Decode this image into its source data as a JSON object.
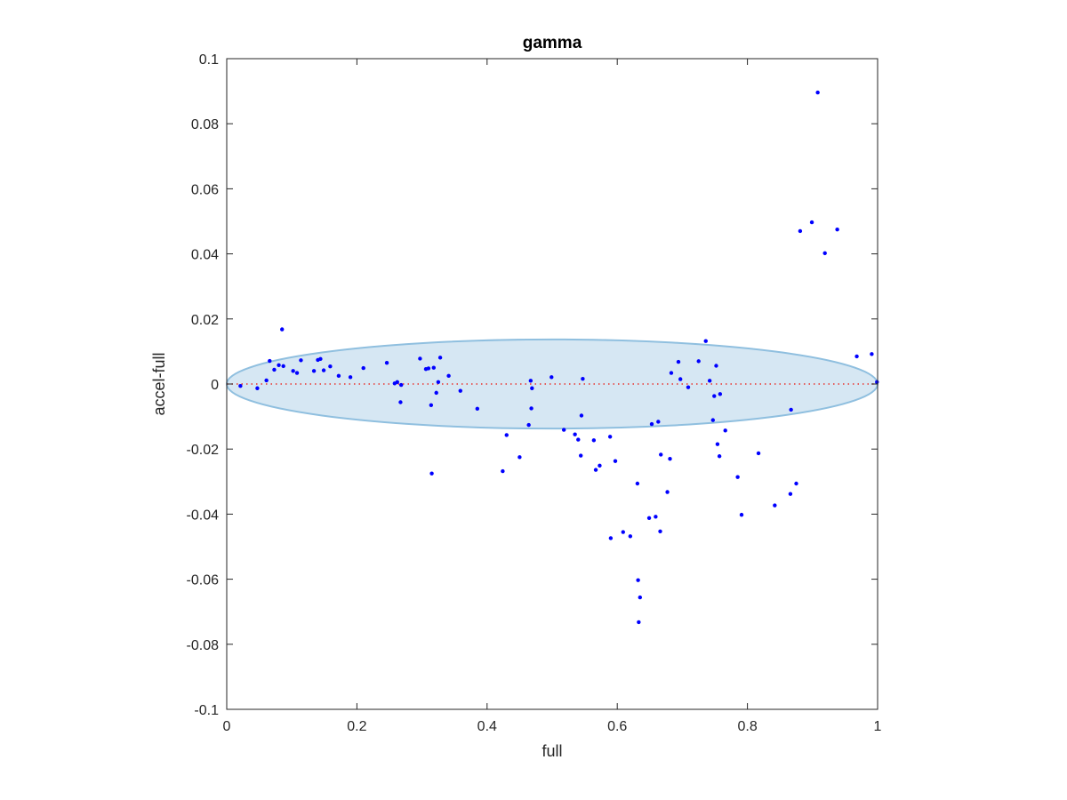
{
  "chart_data": {
    "type": "scatter",
    "title": "gamma",
    "xlabel": "full",
    "ylabel": "accel-full",
    "xlim": [
      0,
      1
    ],
    "ylim": [
      -0.1,
      0.1
    ],
    "xticks": [
      0,
      0.2,
      0.4,
      0.6,
      0.8,
      1
    ],
    "xtick_labels": [
      "0",
      "0.2",
      "0.4",
      "0.6",
      "0.8",
      "1"
    ],
    "yticks": [
      -0.1,
      -0.08,
      -0.06,
      -0.04,
      -0.02,
      0,
      0.02,
      0.04,
      0.06,
      0.08,
      0.1
    ],
    "ytick_labels": [
      "-0.1",
      "-0.08",
      "-0.06",
      "-0.04",
      "-0.02",
      "0",
      "0.02",
      "0.04",
      "0.06",
      "0.08",
      "0.1"
    ],
    "grid": false,
    "ellipse": {
      "center": [
        0.5,
        0
      ],
      "semi_x": 0.5,
      "semi_y": 0.0137,
      "fill": "#d6e7f3",
      "stroke": "#8fbfdf"
    },
    "zero_line": {
      "y": 0,
      "color": "#e8302a",
      "style": "dotted"
    },
    "marker_color": "#0000ff",
    "points": [
      [
        0.021,
        -0.0006
      ],
      [
        0.047,
        -0.0013
      ],
      [
        0.061,
        0.0011
      ],
      [
        0.066,
        0.0071
      ],
      [
        0.073,
        0.0044
      ],
      [
        0.08,
        0.0058
      ],
      [
        0.085,
        0.0168
      ],
      [
        0.087,
        0.0055
      ],
      [
        0.102,
        0.004
      ],
      [
        0.108,
        0.0034
      ],
      [
        0.114,
        0.0073
      ],
      [
        0.134,
        0.004
      ],
      [
        0.14,
        0.0074
      ],
      [
        0.144,
        0.0077
      ],
      [
        0.149,
        0.0042
      ],
      [
        0.159,
        0.0054
      ],
      [
        0.172,
        0.0025
      ],
      [
        0.19,
        0.0021
      ],
      [
        0.21,
        0.0049
      ],
      [
        0.246,
        0.0065
      ],
      [
        0.258,
        0.0002
      ],
      [
        0.262,
        0.0006
      ],
      [
        0.267,
        -0.0056
      ],
      [
        0.268,
        -0.0003
      ],
      [
        0.297,
        0.0078
      ],
      [
        0.306,
        0.0046
      ],
      [
        0.31,
        0.0048
      ],
      [
        0.314,
        -0.0065
      ],
      [
        0.315,
        -0.0275
      ],
      [
        0.318,
        0.005
      ],
      [
        0.322,
        -0.0027
      ],
      [
        0.325,
        0.0006
      ],
      [
        0.328,
        0.0081
      ],
      [
        0.341,
        0.0025
      ],
      [
        0.359,
        -0.0021
      ],
      [
        0.385,
        -0.0076
      ],
      [
        0.424,
        -0.0268
      ],
      [
        0.43,
        -0.0157
      ],
      [
        0.45,
        -0.0225
      ],
      [
        0.464,
        -0.0126
      ],
      [
        0.467,
        0.001
      ],
      [
        0.468,
        -0.0075
      ],
      [
        0.469,
        -0.0013
      ],
      [
        0.499,
        0.0021
      ],
      [
        0.518,
        -0.0141
      ],
      [
        0.535,
        -0.0155
      ],
      [
        0.54,
        -0.0171
      ],
      [
        0.544,
        -0.022
      ],
      [
        0.545,
        -0.0097
      ],
      [
        0.547,
        0.0016
      ],
      [
        0.564,
        -0.0173
      ],
      [
        0.567,
        -0.0264
      ],
      [
        0.573,
        -0.0251
      ],
      [
        0.589,
        -0.0162
      ],
      [
        0.59,
        -0.0474
      ],
      [
        0.597,
        -0.0237
      ],
      [
        0.609,
        -0.0455
      ],
      [
        0.62,
        -0.0468
      ],
      [
        0.631,
        -0.0306
      ],
      [
        0.632,
        -0.0603
      ],
      [
        0.633,
        -0.0732
      ],
      [
        0.635,
        -0.0656
      ],
      [
        0.649,
        -0.0412
      ],
      [
        0.653,
        -0.0123
      ],
      [
        0.659,
        -0.0408
      ],
      [
        0.663,
        -0.0116
      ],
      [
        0.666,
        -0.0453
      ],
      [
        0.667,
        -0.0217
      ],
      [
        0.677,
        -0.0332
      ],
      [
        0.681,
        -0.023
      ],
      [
        0.683,
        0.0034
      ],
      [
        0.694,
        0.0068
      ],
      [
        0.697,
        0.0015
      ],
      [
        0.709,
        -0.001
      ],
      [
        0.725,
        0.007
      ],
      [
        0.736,
        0.0132
      ],
      [
        0.742,
        0.001
      ],
      [
        0.747,
        -0.0111
      ],
      [
        0.749,
        -0.0037
      ],
      [
        0.752,
        0.0056
      ],
      [
        0.754,
        -0.0185
      ],
      [
        0.757,
        -0.0222
      ],
      [
        0.758,
        -0.0031
      ],
      [
        0.766,
        -0.0143
      ],
      [
        0.785,
        -0.0286
      ],
      [
        0.791,
        -0.0402
      ],
      [
        0.817,
        -0.0213
      ],
      [
        0.842,
        -0.0373
      ],
      [
        0.866,
        -0.0338
      ],
      [
        0.867,
        -0.0079
      ],
      [
        0.875,
        -0.0306
      ],
      [
        0.881,
        0.047
      ],
      [
        0.899,
        0.0497
      ],
      [
        0.908,
        0.0896
      ],
      [
        0.919,
        0.0402
      ],
      [
        0.938,
        0.0475
      ],
      [
        0.968,
        0.0085
      ],
      [
        0.991,
        0.0092
      ],
      [
        0.999,
        0.0006
      ]
    ]
  }
}
